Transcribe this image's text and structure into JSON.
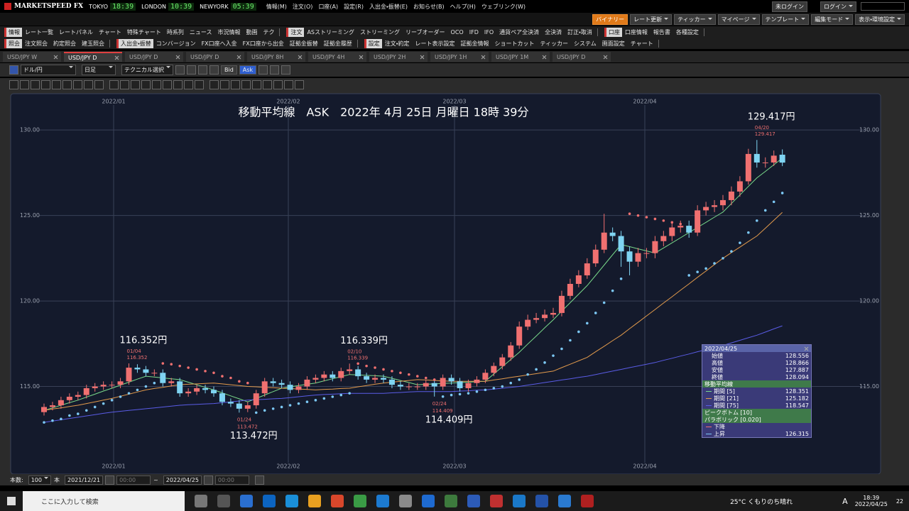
{
  "title_bar": {
    "app": "MARKETSPEED FX",
    "clocks": [
      {
        "city": "TOKYO",
        "time": "18:39"
      },
      {
        "city": "LONDON",
        "time": "10:39"
      },
      {
        "city": "NEWYORK",
        "time": "05:39"
      }
    ],
    "menu": [
      "情報(M)",
      "注文(O)",
      "口座(A)",
      "設定(R)",
      "入出金・振替(E)",
      "お知らせ(B)",
      "ヘルプ(H)",
      "ウェブリンク(W)"
    ],
    "login_status": "未ログイン",
    "login": "ログイン",
    "right_buttons": [
      "バイナリー",
      "レート更新",
      "ティッカー",
      "マイページ",
      "テンプレート",
      "編集モード",
      "表示・環境設定"
    ]
  },
  "toolbar_rows": [
    [
      {
        "group": "情報",
        "items": [
          "レート一覧",
          "レートパネル",
          "チャート",
          "特殊チャート",
          "時系列",
          "ニュース",
          "市況情報",
          "動画",
          "テク"
        ]
      },
      {
        "group": "注文",
        "items": [
          "ASストリーミング",
          "ストリーミング",
          "リーブオーダー",
          "OCO",
          "IFD",
          "IFO",
          "通貨ペア全決済",
          "全決済",
          "訂正・取消"
        ]
      },
      {
        "group": "口座",
        "items": [
          "口座情報",
          "報告書",
          "各種設定"
        ]
      }
    ],
    [
      {
        "group": "照会",
        "items": [
          "注文照会",
          "約定照会",
          "建玉照会"
        ]
      },
      {
        "group": "入出金・振替",
        "items": [
          "コンバージョン",
          "FX口座へ入金",
          "FX口座から出金",
          "証拠金振替",
          "証拠金履歴"
        ]
      },
      {
        "group": "設定",
        "items": [
          "注文・約定",
          "レート表示設定",
          "証拠金情報",
          "ショートカット",
          "ティッカー",
          "システム",
          "画面設定",
          "チャート"
        ]
      }
    ]
  ],
  "tabs": [
    {
      "label": "USD/JPY W",
      "active": false
    },
    {
      "label": "USD/JPY D",
      "active": true
    },
    {
      "label": "USD/JPY D",
      "active": false
    },
    {
      "label": "USD/JPY D",
      "active": false
    },
    {
      "label": "USD/JPY 8H",
      "active": false
    },
    {
      "label": "USD/JPY 4H",
      "active": false
    },
    {
      "label": "USD/JPY 2H",
      "active": false
    },
    {
      "label": "USD/JPY 1H",
      "active": false
    },
    {
      "label": "USD/JPY 1M",
      "active": false
    },
    {
      "label": "USD/JPY D",
      "active": false
    }
  ],
  "chart_toolbar": {
    "pair": "ドル/円",
    "period": "日足",
    "technical": "テクニカル選択",
    "bid": "Bid",
    "ask": "Ask"
  },
  "chart_data": {
    "type": "candlestick",
    "title": "移動平均線　ASK　2022年 4月 25日 月曜日 18時 39分",
    "month_labels": [
      "2022/01",
      "2022/02",
      "2022/03",
      "2022/04"
    ],
    "ylim": [
      110,
      132
    ],
    "yticks": [
      {
        "value": 130,
        "label": "130.00"
      },
      {
        "value": 125,
        "label": "125.00"
      },
      {
        "value": 120,
        "label": "120.00"
      },
      {
        "value": 115,
        "label": "115.00"
      }
    ],
    "grid": true,
    "up_color": "#f07070",
    "down_color": "#7fd4f2",
    "open": [
      113.5,
      113.8,
      113.9,
      114.2,
      114.4,
      114.5,
      114.9,
      115.0,
      115.1,
      115.1,
      115.3,
      116.1,
      116.0,
      115.8,
      115.8,
      115.2,
      115.3,
      114.6,
      114.7,
      114.9,
      114.8,
      114.6,
      114.1,
      114.0,
      113.7,
      113.9,
      114.6,
      115.3,
      115.2,
      115.1,
      114.8,
      115.0,
      115.4,
      115.5,
      115.7,
      115.5,
      115.9,
      116.0,
      115.6,
      115.4,
      115.5,
      115.4,
      115.1,
      115.0,
      115.0,
      115.0,
      115.2,
      115.0,
      115.5,
      115.3,
      114.9,
      115.2,
      115.4,
      115.8,
      116.2,
      116.7,
      117.4,
      118.5,
      118.9,
      119.0,
      119.2,
      119.3,
      120.3,
      121.0,
      121.5,
      122.2,
      123.0,
      124.0,
      123.8,
      122.9,
      122.3,
      122.8,
      122.8,
      123.5,
      123.8,
      124.3,
      124.4,
      124.0,
      125.3,
      125.5,
      125.6,
      125.9,
      126.4,
      127.0,
      128.6,
      128.1,
      128.1,
      128.556
    ],
    "high": [
      114.0,
      114.1,
      114.4,
      114.6,
      114.7,
      115.1,
      115.2,
      115.3,
      115.3,
      115.5,
      116.352,
      116.3,
      116.2,
      116.0,
      116.0,
      115.5,
      115.5,
      114.9,
      115.1,
      115.1,
      115.0,
      114.8,
      114.3,
      114.2,
      114.1,
      114.8,
      115.5,
      115.5,
      115.4,
      115.3,
      115.2,
      115.6,
      115.7,
      115.9,
      115.9,
      116.1,
      116.339,
      116.2,
      115.8,
      115.7,
      115.7,
      115.6,
      115.3,
      115.2,
      115.2,
      115.4,
      115.4,
      115.7,
      115.7,
      115.5,
      115.4,
      115.6,
      116.0,
      116.4,
      116.9,
      117.6,
      118.8,
      119.2,
      119.3,
      119.5,
      119.6,
      120.6,
      121.3,
      121.8,
      122.5,
      123.3,
      125.1,
      124.3,
      124.1,
      123.2,
      123.1,
      123.1,
      123.8,
      124.1,
      124.6,
      124.7,
      124.7,
      125.6,
      125.8,
      125.9,
      126.2,
      126.7,
      127.3,
      128.9,
      129.417,
      128.4,
      128.8,
      128.866
    ],
    "low": [
      113.3,
      113.6,
      113.7,
      114.0,
      114.2,
      114.3,
      114.7,
      114.8,
      114.9,
      114.9,
      115.1,
      115.8,
      115.6,
      115.6,
      115.0,
      115.0,
      114.4,
      114.4,
      114.5,
      114.6,
      114.4,
      113.9,
      113.8,
      113.472,
      113.5,
      113.7,
      114.4,
      115.0,
      114.9,
      114.6,
      114.6,
      114.8,
      115.2,
      115.3,
      115.3,
      115.3,
      115.7,
      115.4,
      115.2,
      115.2,
      115.2,
      114.9,
      114.8,
      114.8,
      114.8,
      114.8,
      114.409,
      114.8,
      115.1,
      114.7,
      114.7,
      115.0,
      115.2,
      115.6,
      116.0,
      116.5,
      117.2,
      118.3,
      118.7,
      118.8,
      119.0,
      119.1,
      120.1,
      120.8,
      121.3,
      122.0,
      122.8,
      123.5,
      122.0,
      121.5,
      122.0,
      122.5,
      122.5,
      123.2,
      123.5,
      124.0,
      123.7,
      123.8,
      125.0,
      125.2,
      125.3,
      125.6,
      126.1,
      126.8,
      127.8,
      127.8,
      127.9,
      127.887
    ],
    "close": [
      113.8,
      113.9,
      114.2,
      114.4,
      114.5,
      114.9,
      115.0,
      115.1,
      115.1,
      115.3,
      116.1,
      116.0,
      115.8,
      115.8,
      115.2,
      115.3,
      114.6,
      114.7,
      114.9,
      114.8,
      114.6,
      114.1,
      114.0,
      113.7,
      113.9,
      114.6,
      115.3,
      115.2,
      115.1,
      114.8,
      115.0,
      115.4,
      115.5,
      115.7,
      115.5,
      115.9,
      116.0,
      115.6,
      115.4,
      115.5,
      115.4,
      115.1,
      115.0,
      115.0,
      115.0,
      115.2,
      115.0,
      115.5,
      115.3,
      114.9,
      115.2,
      115.4,
      115.8,
      116.2,
      116.7,
      117.4,
      118.5,
      118.9,
      119.0,
      119.2,
      119.3,
      120.3,
      121.0,
      121.5,
      122.2,
      123.0,
      124.0,
      123.8,
      122.9,
      122.3,
      122.8,
      122.8,
      123.5,
      123.8,
      124.3,
      124.4,
      124.0,
      125.3,
      125.5,
      125.6,
      125.9,
      126.4,
      127.0,
      128.6,
      128.1,
      128.1,
      128.5,
      128.094
    ],
    "moving_averages": [
      {
        "name": "期間 [5]",
        "color": "#79d98a",
        "values": [
          113.6,
          113.75,
          113.9,
          114.05,
          114.2,
          114.38,
          114.55,
          114.73,
          114.9,
          115.08,
          115.25,
          115.43,
          115.6,
          115.55,
          115.5,
          115.45,
          115.4,
          115.25,
          115.1,
          114.95,
          114.8,
          114.63,
          114.45,
          114.28,
          114.1,
          114.3,
          114.5,
          114.7,
          114.9,
          114.98,
          115.05,
          115.13,
          115.2,
          115.33,
          115.45,
          115.58,
          115.7,
          115.68,
          115.65,
          115.63,
          115.6,
          115.48,
          115.35,
          115.23,
          115.1,
          115.13,
          115.15,
          115.18,
          115.2,
          115.23,
          115.25,
          115.28,
          115.3,
          115.73,
          116.15,
          116.58,
          117.0,
          117.48,
          117.95,
          118.43,
          118.9,
          119.4,
          119.9,
          120.4,
          120.9,
          121.5,
          122.1,
          122.7,
          123.3,
          123.18,
          123.05,
          122.93,
          122.8,
          123.1,
          123.4,
          123.7,
          124.0,
          124.3,
          124.6,
          124.9,
          125.2,
          125.7,
          126.2,
          126.7,
          127.2,
          127.58,
          127.97,
          128.351
        ]
      },
      {
        "name": "期間 [21]",
        "color": "#e29a4c",
        "values": [
          113.6,
          113.68,
          113.75,
          113.83,
          113.9,
          114.0,
          114.1,
          114.2,
          114.3,
          114.43,
          114.55,
          114.68,
          114.8,
          114.88,
          114.95,
          115.03,
          115.1,
          115.13,
          115.15,
          115.18,
          115.2,
          115.15,
          115.1,
          115.05,
          115.0,
          114.98,
          114.95,
          114.93,
          114.9,
          114.88,
          114.85,
          114.83,
          114.8,
          114.83,
          114.85,
          114.88,
          114.9,
          114.98,
          115.05,
          115.13,
          115.2,
          115.25,
          115.3,
          115.35,
          115.4,
          115.38,
          115.35,
          115.33,
          115.3,
          115.3,
          115.3,
          115.3,
          115.3,
          115.38,
          115.45,
          115.53,
          115.6,
          115.68,
          115.75,
          115.83,
          115.9,
          116.1,
          116.3,
          116.5,
          116.7,
          117.03,
          117.35,
          117.68,
          118.0,
          118.38,
          118.75,
          119.13,
          119.5,
          119.88,
          120.25,
          120.63,
          121.0,
          121.38,
          121.75,
          122.13,
          122.5,
          122.83,
          123.15,
          123.48,
          123.8,
          124.26,
          124.72,
          125.182
        ]
      },
      {
        "name": "期間 [75]",
        "color": "#5a5ce6",
        "values": [
          112.9,
          112.98,
          113.05,
          113.13,
          113.2,
          113.28,
          113.35,
          113.43,
          113.5,
          113.55,
          113.6,
          113.65,
          113.7,
          113.75,
          113.8,
          113.85,
          113.9,
          113.93,
          113.95,
          113.98,
          114.0,
          114.05,
          114.1,
          114.15,
          114.2,
          114.23,
          114.25,
          114.28,
          114.3,
          114.35,
          114.4,
          114.45,
          114.5,
          114.53,
          114.55,
          114.58,
          114.6,
          114.6,
          114.6,
          114.6,
          114.6,
          114.63,
          114.65,
          114.68,
          114.7,
          114.7,
          114.7,
          114.7,
          114.7,
          114.73,
          114.75,
          114.78,
          114.8,
          114.85,
          114.9,
          114.95,
          115.0,
          115.08,
          115.15,
          115.23,
          115.3,
          115.38,
          115.45,
          115.53,
          115.6,
          115.7,
          115.8,
          115.9,
          116.0,
          116.1,
          116.2,
          116.3,
          116.4,
          116.53,
          116.65,
          116.78,
          116.9,
          117.03,
          117.15,
          117.28,
          117.4,
          117.55,
          117.7,
          117.85,
          118.0,
          118.18,
          118.37,
          118.547
        ]
      }
    ],
    "sar": [
      112.9,
      113.0,
      113.1,
      113.3,
      113.4,
      113.6,
      113.8,
      114.0,
      114.2,
      114.4,
      114.6,
      114.8,
      115.0,
      115.2,
      116.35,
      116.3,
      116.2,
      116.1,
      116.0,
      115.9,
      115.8,
      115.6,
      115.5,
      115.3,
      115.2,
      113.47,
      113.6,
      113.7,
      113.8,
      113.9,
      114.0,
      114.1,
      114.2,
      114.3,
      114.4,
      114.5,
      114.6,
      116.34,
      116.2,
      116.1,
      116.0,
      115.9,
      115.8,
      115.7,
      115.6,
      115.5,
      115.4,
      114.41,
      114.5,
      114.55,
      114.6,
      114.7,
      114.8,
      114.9,
      115.0,
      115.2,
      115.4,
      115.7,
      116.0,
      116.4,
      116.8,
      117.2,
      117.7,
      118.2,
      118.7,
      119.3,
      119.9,
      120.6,
      121.3,
      125.1,
      125.0,
      124.9,
      124.8,
      124.7,
      124.6,
      124.5,
      121.5,
      121.7,
      121.9,
      122.2,
      122.5,
      122.9,
      123.4,
      124.0,
      124.7,
      125.3,
      125.8,
      126.315
    ],
    "sar_colors": {
      "falling": "#f07070",
      "rising": "#7cc8f5"
    },
    "annotations": [
      {
        "date": "01/04",
        "value": 116.352,
        "label": "116.352円"
      },
      {
        "date": "01/24",
        "value": 113.472,
        "label": "113.472円"
      },
      {
        "date": "02/10",
        "value": 116.339,
        "label": "116.339円"
      },
      {
        "date": "02/24",
        "value": 114.409,
        "label": "114.409円"
      },
      {
        "date": "04/20",
        "value": 129.417,
        "label": "129.417円"
      }
    ]
  },
  "info_panel": {
    "date": "2022/04/25",
    "ohlc_labels": [
      "始値",
      "高値",
      "安値",
      "終値"
    ],
    "ma_title": "移動平均線",
    "peak_bottom": "ピークボトム [10]",
    "parabolic": "パラボリック [0.020]",
    "sar_labels": [
      "下降",
      "上昇"
    ]
  },
  "footer": {
    "count_label": "本数:",
    "count": "100",
    "unit": "本",
    "start_date": "2021/12/21",
    "start_time": "00:00",
    "separator": "~",
    "end_date": "2022/04/25",
    "end_time": "00:00"
  },
  "taskbar": {
    "search": "ここに入力して検索",
    "weather": "25°C くもりのち晴れ",
    "ime": "A",
    "time": "18:39",
    "date": "2022/04/25",
    "notifications": "22"
  }
}
